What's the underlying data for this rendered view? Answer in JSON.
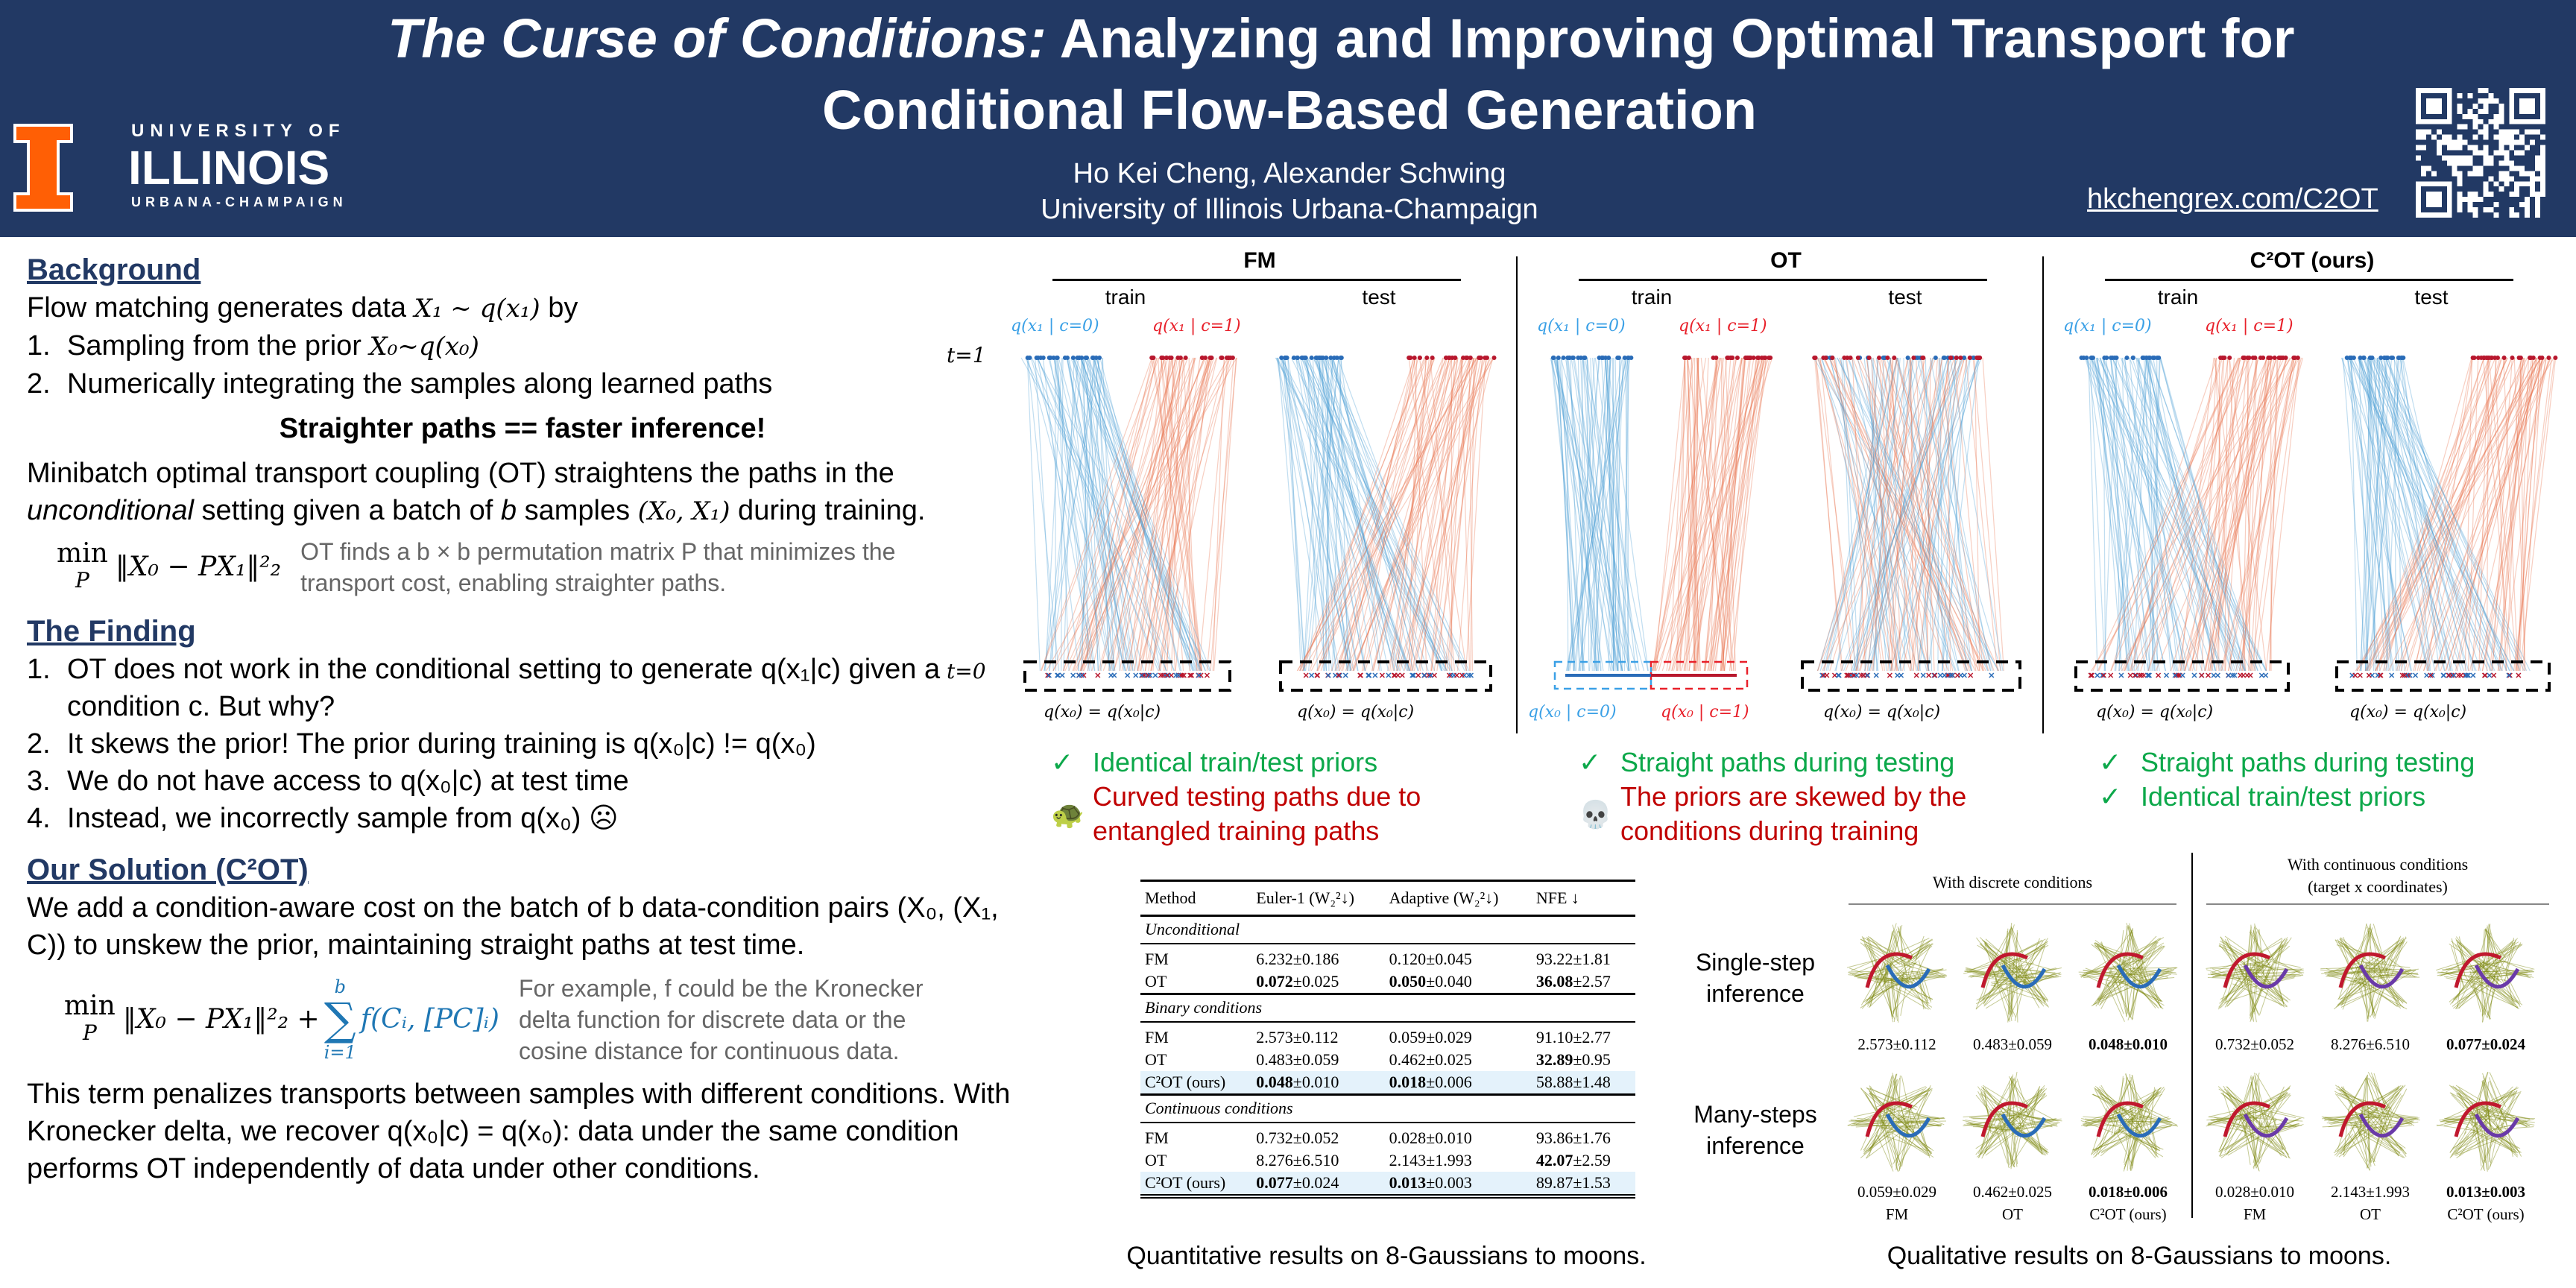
{
  "header": {
    "title_italic": "The Curse of Conditions:",
    "title_rest_line1": " Analyzing and Improving Optimal Transport for",
    "title_line2": "Conditional Flow-Based Generation",
    "authors": "Ho Kei Cheng, Alexander Schwing",
    "affiliation": "University of Illinois Urbana-Champaign",
    "url": "hkchengrex.com/C2OT",
    "logo": {
      "line1": "UNIVERSITY OF",
      "line2": "ILLINOIS",
      "line3": "URBANA-CHAMPAIGN"
    },
    "qr_icon": "qr-code-icon"
  },
  "background": {
    "heading": "Background",
    "intro_text": "Flow matching generates data ",
    "intro_math": "X₁ ~ q(x₁)",
    "intro_end": " by",
    "steps": [
      {
        "n": "1.",
        "text": "Sampling from the prior ",
        "math": "X₀~q(x₀)"
      },
      {
        "n": "2.",
        "text": "Numerically integrating the samples along learned paths",
        "math": ""
      }
    ],
    "tagline": "Straighter paths == faster inference!",
    "ot_para_1": "Minibatch optimal transport coupling (OT) straightens the paths in the",
    "ot_para_2_italic": "unconditional",
    "ot_para_2_rest": " setting given a batch of ",
    "ot_para_2_b": "b",
    "ot_para_2_mid": " samples ",
    "ot_para_2_math": "(X₀, X₁)",
    "ot_para_2_end": " during training.",
    "equation": {
      "min": "min",
      "sub": "P",
      "body": "‖X₀ − PX₁‖²₂"
    },
    "equation_note": "OT finds a b × b permutation matrix P that minimizes the transport cost, enabling straighter paths."
  },
  "finding": {
    "heading": "The Finding",
    "items": [
      {
        "n": "1.",
        "text": "OT does not work in the conditional setting to generate q(x₁|c) given a condition c. But why?"
      },
      {
        "n": "2.",
        "text": "It skews the prior! The prior during training is q(x₀|c) != q(x₀)"
      },
      {
        "n": "3.",
        "text": "We do not have access to q(x₀|c) at test time"
      },
      {
        "n": "4.",
        "text": "Instead, we incorrectly sample from q(x₀) ☹"
      }
    ]
  },
  "solution": {
    "heading": "Our Solution (C²OT)",
    "para1": "We add a condition-aware cost on the batch of b data-condition pairs (X₀, (X₁, C)) to unskew the prior, maintaining straight paths at test time.",
    "equation": {
      "min": "min",
      "sub": "P",
      "body": "‖X₀ − PX₁‖²₂ +",
      "sum_top": "b",
      "sum_bottom": "i=1",
      "sum_body": "f(Cᵢ, [PC]ᵢ)"
    },
    "equation_note": "For example, f could be the Kronecker delta function for discrete data or the cosine distance for continuous data.",
    "para2": "This term penalizes transports between samples with different conditions. With Kronecker delta, we recover q(x₀|c) = q(x₀): data under the same condition performs OT independently of data under other conditions."
  },
  "figure": {
    "t1_label": "t=1",
    "t0_label": "t=0",
    "panels": [
      {
        "title": "FM",
        "train": "train",
        "test": "test",
        "top_blue": "q(x₁ | c=0)",
        "top_red": "q(x₁ | c=1)",
        "bottom_train": "q(x₀) = q(x₀|c)",
        "bottom_test": "q(x₀) = q(x₀|c)"
      },
      {
        "title": "OT",
        "train": "train",
        "test": "test",
        "top_blue": "q(x₁ | c=0)",
        "top_red": "q(x₁ | c=1)",
        "bottom_train_blue": "q(x₀ | c=0)",
        "bottom_train_red": "q(x₀ | c=1)",
        "bottom_test": "q(x₀) = q(x₀|c)"
      },
      {
        "title": "C²OT (ours)",
        "train": "train",
        "test": "test",
        "top_blue": "q(x₁ | c=0)",
        "top_red": "q(x₁ | c=1)",
        "bottom_train": "q(x₀) = q(x₀|c)",
        "bottom_test": "q(x₀) = q(x₀|c)"
      }
    ],
    "notes": [
      {
        "good": [
          "Identical train/test priors"
        ],
        "bad_icon": "turtle-icon",
        "bad": "Curved testing paths due to entangled training paths"
      },
      {
        "good": [
          "Straight paths during testing"
        ],
        "bad_icon": "skull-icon",
        "bad": "The priors are skewed by the conditions during training"
      },
      {
        "good": [
          "Straight paths during testing",
          "Identical train/test priors"
        ]
      }
    ],
    "check": "✓",
    "colors": {
      "blue": "#4a9fd4",
      "red": "#e8734e",
      "dot_blue": "#2a6cb8",
      "dot_red": "#b8182e"
    }
  },
  "table": {
    "headers": [
      "Method",
      "Euler-1 (W₂²↓)",
      "Adaptive (W₂²↓)",
      "NFE ↓"
    ],
    "sections": [
      {
        "name": "Unconditional",
        "rows": [
          {
            "method": "FM",
            "euler": "6.232",
            "euler_sd": "±0.186",
            "adaptive": "0.120",
            "adaptive_sd": "±0.045",
            "nfe": "93.22",
            "nfe_sd": "±1.81",
            "bold": []
          },
          {
            "method": "OT",
            "euler": "0.072",
            "euler_sd": "±0.025",
            "adaptive": "0.050",
            "adaptive_sd": "±0.040",
            "nfe": "36.08",
            "nfe_sd": "±2.57",
            "bold": [
              "euler",
              "adaptive",
              "nfe"
            ]
          }
        ]
      },
      {
        "name": "Binary conditions",
        "rows": [
          {
            "method": "FM",
            "euler": "2.573",
            "euler_sd": "±0.112",
            "adaptive": "0.059",
            "adaptive_sd": "±0.029",
            "nfe": "91.10",
            "nfe_sd": "±2.77",
            "bold": []
          },
          {
            "method": "OT",
            "euler": "0.483",
            "euler_sd": "±0.059",
            "adaptive": "0.462",
            "adaptive_sd": "±0.025",
            "nfe": "32.89",
            "nfe_sd": "±0.95",
            "bold": [
              "nfe"
            ]
          },
          {
            "method": "C²OT (ours)",
            "euler": "0.048",
            "euler_sd": "±0.010",
            "adaptive": "0.018",
            "adaptive_sd": "±0.006",
            "nfe": "58.88",
            "nfe_sd": "±1.48",
            "bold": [
              "euler",
              "adaptive"
            ],
            "highlight": true
          }
        ]
      },
      {
        "name": "Continuous conditions",
        "rows": [
          {
            "method": "FM",
            "euler": "0.732",
            "euler_sd": "±0.052",
            "adaptive": "0.028",
            "adaptive_sd": "±0.010",
            "nfe": "93.86",
            "nfe_sd": "±1.76",
            "bold": []
          },
          {
            "method": "OT",
            "euler": "8.276",
            "euler_sd": "±6.510",
            "adaptive": "2.143",
            "adaptive_sd": "±1.993",
            "nfe": "42.07",
            "nfe_sd": "±2.59",
            "bold": [
              "nfe"
            ]
          },
          {
            "method": "C²OT (ours)",
            "euler": "0.077",
            "euler_sd": "±0.024",
            "adaptive": "0.013",
            "adaptive_sd": "±0.003",
            "nfe": "89.87",
            "nfe_sd": "±1.53",
            "bold": [
              "euler",
              "adaptive"
            ],
            "highlight": true
          }
        ]
      }
    ],
    "caption": "Quantitative results on 8-Gaussians to moons."
  },
  "qualitative": {
    "group_discrete": "With discrete conditions",
    "group_continuous_1": "With continuous conditions",
    "group_continuous_2": "(target x coordinates)",
    "row_single": "Single-step inference",
    "row_many": "Many-steps inference",
    "single_values": [
      "2.573±0.112",
      "0.483±0.059",
      "0.048±0.010",
      "0.732±0.052",
      "8.276±6.510",
      "0.077±0.024"
    ],
    "many_values": [
      "0.059±0.029",
      "0.462±0.025",
      "0.018±0.006",
      "0.028±0.010",
      "2.143±1.993",
      "0.013±0.003"
    ],
    "bold_index": [
      2,
      5
    ],
    "methods": [
      "FM",
      "OT",
      "C²OT (ours)",
      "FM",
      "OT",
      "C²OT (ours)"
    ],
    "caption": "Qualitative results on 8-Gaussians to moons."
  }
}
